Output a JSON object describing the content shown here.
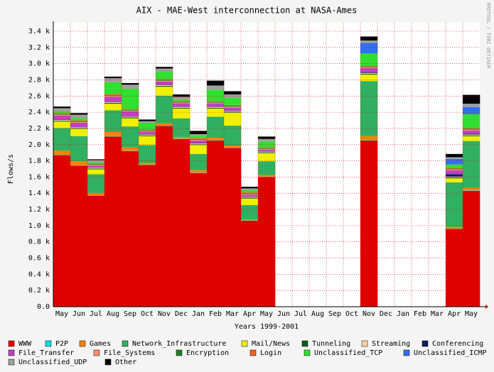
{
  "chart_data": {
    "type": "stacked_area",
    "title": "AIX - MAE-West interconnection at NASA-Ames",
    "x_label": "Years 1999-2001",
    "y_label": "Flows/s",
    "watermark": "RRDTOOL / TOBI OETIKER",
    "grid": true,
    "categories": [
      "May",
      "Jun",
      "Jul",
      "Aug",
      "Sep",
      "Oct",
      "Nov",
      "Dec",
      "Jan",
      "Feb",
      "Mar",
      "Apr",
      "May",
      "Jun",
      "Jul",
      "Aug",
      "Sep",
      "Oct",
      "Nov",
      "Dec",
      "Jan",
      "Feb",
      "Mar",
      "Apr",
      "May"
    ],
    "ylim": [
      0,
      3500
    ],
    "yticks": [
      {
        "value": 0,
        "label": "0.0"
      },
      {
        "value": 200,
        "label": "0.2 k"
      },
      {
        "value": 400,
        "label": "0.4 k"
      },
      {
        "value": 600,
        "label": "0.6 k"
      },
      {
        "value": 800,
        "label": "0.8 k"
      },
      {
        "value": 1000,
        "label": "1.0 k"
      },
      {
        "value": 1200,
        "label": "1.2 k"
      },
      {
        "value": 1400,
        "label": "1.4 k"
      },
      {
        "value": 1600,
        "label": "1.6 k"
      },
      {
        "value": 1800,
        "label": "1.8 k"
      },
      {
        "value": 2000,
        "label": "2.0 k"
      },
      {
        "value": 2200,
        "label": "2.2 k"
      },
      {
        "value": 2400,
        "label": "2.4 k"
      },
      {
        "value": 2600,
        "label": "2.6 k"
      },
      {
        "value": 2800,
        "label": "2.8 k"
      },
      {
        "value": 3000,
        "label": "3.0 k"
      },
      {
        "value": 3200,
        "label": "3.2 k"
      },
      {
        "value": 3400,
        "label": "3.4 k"
      }
    ],
    "series": [
      {
        "name": "WWW",
        "color": "#e00000",
        "values": [
          1870,
          1740,
          1370,
          2100,
          1920,
          1750,
          2230,
          2070,
          1650,
          2050,
          1960,
          1060,
          1600,
          null,
          null,
          null,
          null,
          null,
          2050,
          null,
          null,
          null,
          null,
          960,
          1430
        ]
      },
      {
        "name": "P2P",
        "color": "#00e0e0",
        "values": [
          5,
          5,
          5,
          5,
          5,
          5,
          5,
          5,
          5,
          5,
          5,
          5,
          5,
          null,
          null,
          null,
          null,
          null,
          5,
          null,
          null,
          null,
          null,
          5,
          5
        ]
      },
      {
        "name": "Games",
        "color": "#ff8000",
        "values": [
          50,
          50,
          30,
          50,
          40,
          20,
          30,
          20,
          30,
          30,
          20,
          10,
          20,
          null,
          null,
          null,
          null,
          null,
          50,
          null,
          null,
          null,
          null,
          20,
          30
        ]
      },
      {
        "name": "Network_Infrastructure",
        "color": "#30b060",
        "values": [
          280,
          310,
          230,
          270,
          260,
          220,
          340,
          230,
          200,
          260,
          250,
          180,
          170,
          null,
          null,
          null,
          null,
          null,
          680,
          null,
          null,
          null,
          null,
          550,
          580
        ]
      },
      {
        "name": "Mail/News",
        "color": "#f0f000",
        "values": [
          80,
          90,
          60,
          80,
          100,
          110,
          110,
          120,
          110,
          100,
          160,
          80,
          100,
          null,
          null,
          null,
          null,
          null,
          80,
          null,
          null,
          null,
          null,
          50,
          60
        ]
      },
      {
        "name": "Tunneling",
        "color": "#006020",
        "values": [
          10,
          10,
          10,
          10,
          10,
          10,
          10,
          10,
          10,
          10,
          10,
          10,
          10,
          null,
          null,
          null,
          null,
          null,
          10,
          null,
          null,
          null,
          null,
          10,
          10
        ]
      },
      {
        "name": "Streaming",
        "color": "#ffd0a0",
        "values": [
          10,
          10,
          10,
          10,
          10,
          10,
          10,
          10,
          10,
          10,
          10,
          10,
          10,
          null,
          null,
          null,
          null,
          null,
          10,
          null,
          null,
          null,
          null,
          10,
          10
        ]
      },
      {
        "name": "Conferencing",
        "color": "#102060",
        "values": [
          5,
          5,
          5,
          5,
          5,
          5,
          5,
          5,
          5,
          5,
          5,
          5,
          5,
          null,
          null,
          null,
          null,
          null,
          10,
          null,
          null,
          null,
          null,
          30,
          10
        ]
      },
      {
        "name": "File_Transfer",
        "color": "#c040c0",
        "values": [
          50,
          50,
          20,
          60,
          60,
          30,
          40,
          40,
          30,
          40,
          40,
          20,
          20,
          null,
          null,
          null,
          null,
          null,
          50,
          null,
          null,
          null,
          null,
          50,
          40
        ]
      },
      {
        "name": "File_Systems",
        "color": "#ff9070",
        "values": [
          10,
          10,
          10,
          10,
          10,
          10,
          10,
          10,
          10,
          10,
          10,
          10,
          10,
          null,
          null,
          null,
          null,
          null,
          10,
          null,
          null,
          null,
          null,
          10,
          10
        ]
      },
      {
        "name": "Encryption",
        "color": "#208020",
        "values": [
          10,
          10,
          10,
          10,
          10,
          10,
          10,
          10,
          10,
          10,
          10,
          10,
          10,
          null,
          null,
          null,
          null,
          null,
          10,
          null,
          null,
          null,
          null,
          10,
          10
        ]
      },
      {
        "name": "Login",
        "color": "#ff6020",
        "values": [
          10,
          10,
          10,
          10,
          10,
          10,
          10,
          10,
          10,
          10,
          10,
          10,
          10,
          null,
          null,
          null,
          null,
          null,
          10,
          null,
          null,
          null,
          null,
          10,
          10
        ]
      },
      {
        "name": "Unclassified_TCP",
        "color": "#30e030",
        "values": [
          20,
          30,
          10,
          150,
          250,
          80,
          90,
          20,
          30,
          140,
          90,
          30,
          70,
          null,
          null,
          null,
          null,
          null,
          150,
          null,
          null,
          null,
          null,
          40,
          170
        ]
      },
      {
        "name": "Unclassified_ICMP",
        "color": "#3070f0",
        "values": [
          0,
          0,
          0,
          0,
          0,
          0,
          0,
          0,
          0,
          0,
          0,
          0,
          0,
          null,
          null,
          null,
          null,
          null,
          130,
          null,
          null,
          null,
          null,
          70,
          90
        ]
      },
      {
        "name": "Unclassified_UDP",
        "color": "#a0a0a0",
        "values": [
          40,
          40,
          30,
          50,
          50,
          20,
          40,
          30,
          20,
          50,
          40,
          20,
          30,
          null,
          null,
          null,
          null,
          null,
          30,
          null,
          null,
          null,
          null,
          20,
          40
        ]
      },
      {
        "name": "Other",
        "color": "#000000",
        "values": [
          20,
          20,
          10,
          20,
          20,
          20,
          20,
          30,
          40,
          60,
          40,
          20,
          30,
          null,
          null,
          null,
          null,
          null,
          50,
          null,
          null,
          null,
          null,
          40,
          110
        ]
      }
    ]
  }
}
